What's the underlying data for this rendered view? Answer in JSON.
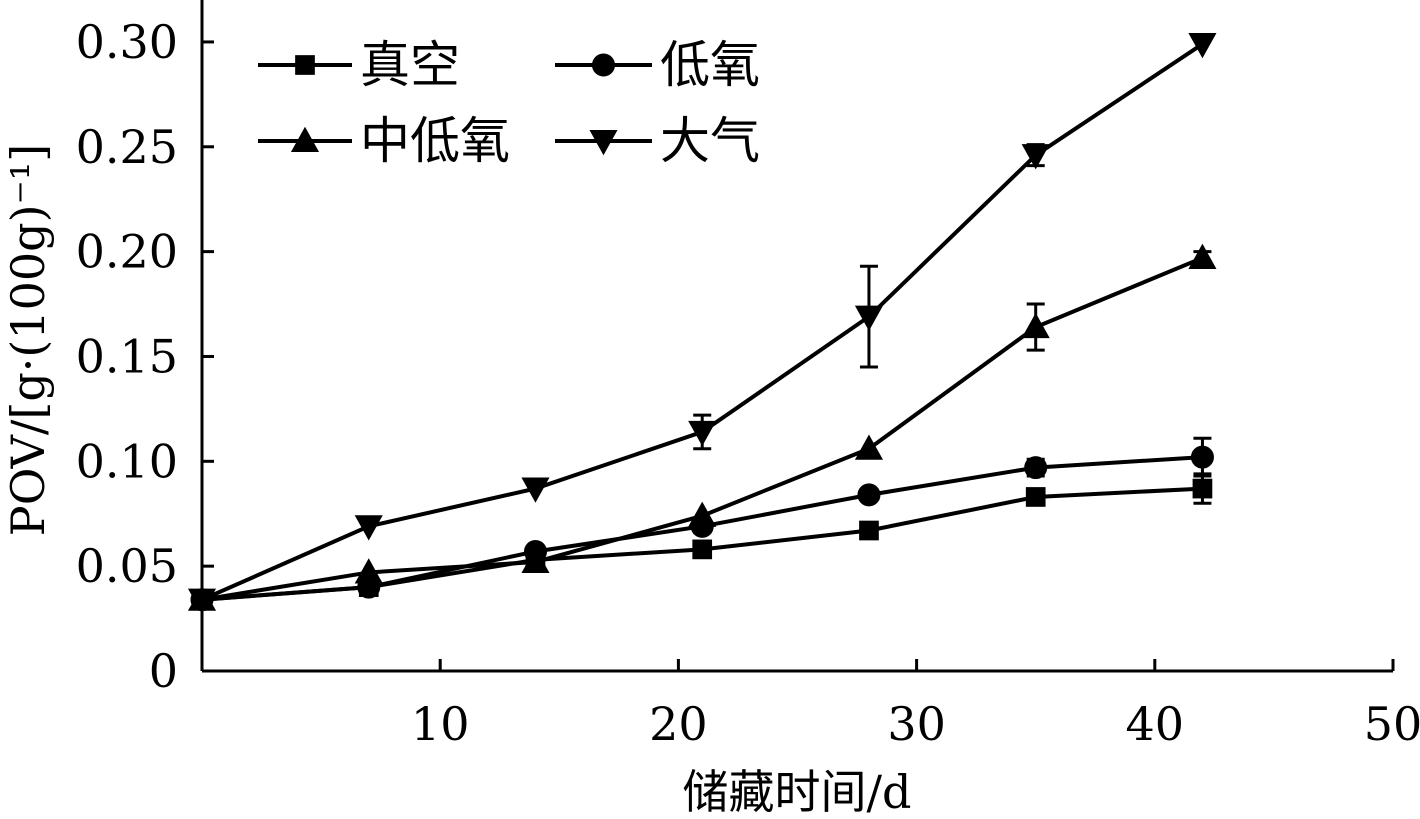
{
  "chart_data": {
    "type": "line",
    "xlabel": "储藏时间/d",
    "ylabel": "POV/[g·(100g)⁻¹]",
    "xlim": [
      0,
      50
    ],
    "ylim": [
      0,
      0.32
    ],
    "xticks": [
      10,
      20,
      30,
      40,
      50
    ],
    "yticks": [
      0,
      0.05,
      0.1,
      0.15,
      0.2,
      0.25,
      0.3
    ],
    "xtick_labels": [
      "10",
      "20",
      "30",
      "40",
      "50"
    ],
    "ytick_labels": [
      "0",
      "0.05",
      "0.10",
      "0.15",
      "0.20",
      "0.25",
      "0.30"
    ],
    "grid": false,
    "legend_position": "top-left",
    "x": [
      0,
      7,
      14,
      21,
      28,
      35,
      42
    ],
    "series": [
      {
        "name": "真空",
        "marker": "square",
        "values": [
          0.034,
          0.04,
          0.053,
          0.058,
          0.067,
          0.083,
          0.087
        ],
        "errors": [
          0.004,
          0.002,
          0.002,
          0.002,
          0.003,
          0.003,
          0.007
        ]
      },
      {
        "name": "低氧",
        "marker": "circle",
        "values": [
          0.034,
          0.04,
          0.057,
          0.069,
          0.084,
          0.097,
          0.102
        ],
        "errors": [
          0.004,
          0.002,
          0.002,
          0.003,
          0.002,
          0.004,
          0.009
        ]
      },
      {
        "name": "中低氧",
        "marker": "triangle-up",
        "values": [
          0.034,
          0.047,
          0.052,
          0.074,
          0.106,
          0.164,
          0.197
        ],
        "errors": [
          0.004,
          0.002,
          0.002,
          0.002,
          0.002,
          0.011,
          0.003
        ]
      },
      {
        "name": "大气",
        "marker": "triangle-down",
        "values": [
          0.034,
          0.069,
          0.087,
          0.114,
          0.169,
          0.246,
          0.299
        ],
        "errors": [
          0.004,
          0.002,
          0.002,
          0.008,
          0.024,
          0.005,
          0.002
        ]
      }
    ]
  }
}
